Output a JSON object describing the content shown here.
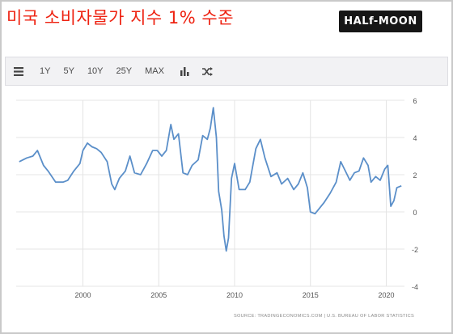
{
  "header": {
    "title": "미국 소비자물가 지수 1% 수준",
    "logo_text": "HALf-MOON"
  },
  "toolbar": {
    "menu_icon": "menu-icon",
    "buttons": [
      "1Y",
      "5Y",
      "10Y",
      "25Y",
      "MAX"
    ],
    "bar_chart_icon": "bar-chart-icon",
    "shuffle_icon": "shuffle-icon"
  },
  "colors": {
    "title": "#ee2211",
    "line": "#5b8fc9",
    "grid": "#e4e4e4",
    "toolbar_bg": "#f2f2f4"
  },
  "chart_data": {
    "type": "line",
    "title": "",
    "xlabel": "",
    "ylabel": "",
    "source": "SOURCE: TRADINGECONOMICS.COM | U.S. BUREAU OF LABOR STATISTICS",
    "x_ticks": [
      "2000",
      "2005",
      "2010",
      "2015",
      "2020"
    ],
    "x_tick_values": [
      2000,
      2005,
      2010,
      2015,
      2020
    ],
    "y_ticks": [
      "6",
      "4",
      "2",
      "0",
      "-2",
      "-4"
    ],
    "y_tick_values": [
      6,
      4,
      2,
      0,
      -2,
      -4
    ],
    "xlim": [
      1995.6,
      2021.2
    ],
    "ylim": [
      -4,
      6
    ],
    "grid": true,
    "y_axis_position": "right",
    "series": [
      {
        "x": [
          1995.8,
          1996.3,
          1996.7,
          1997.0,
          1997.4,
          1997.7,
          1998.2,
          1998.7,
          1999.0,
          1999.4,
          1999.8,
          2000.0,
          2000.3,
          2000.6,
          2000.9,
          2001.2,
          2001.6,
          2001.9,
          2002.1,
          2002.4,
          2002.8,
          2003.1,
          2003.4,
          2003.8,
          2004.2,
          2004.6,
          2004.9,
          2005.2,
          2005.5,
          2005.8,
          2006.0,
          2006.3,
          2006.6,
          2006.9,
          2007.2,
          2007.6,
          2007.9,
          2008.2,
          2008.4,
          2008.6,
          2008.8,
          2008.95,
          2009.15,
          2009.3,
          2009.45,
          2009.6,
          2009.8,
          2010.0,
          2010.3,
          2010.7,
          2011.0,
          2011.4,
          2011.7,
          2012.0,
          2012.4,
          2012.8,
          2013.1,
          2013.5,
          2013.9,
          2014.2,
          2014.5,
          2014.8,
          2015.0,
          2015.3,
          2015.6,
          2015.9,
          2016.3,
          2016.7,
          2017.0,
          2017.3,
          2017.6,
          2017.9,
          2018.2,
          2018.5,
          2018.8,
          2019.0,
          2019.3,
          2019.6,
          2019.9,
          2020.1,
          2020.3,
          2020.5,
          2020.7,
          2021.0
        ],
        "y": [
          2.7,
          2.9,
          3.0,
          3.3,
          2.5,
          2.2,
          1.6,
          1.6,
          1.7,
          2.2,
          2.6,
          3.3,
          3.7,
          3.5,
          3.4,
          3.2,
          2.7,
          1.5,
          1.2,
          1.8,
          2.2,
          3.0,
          2.1,
          2.0,
          2.6,
          3.3,
          3.3,
          3.0,
          3.3,
          4.7,
          3.9,
          4.2,
          2.1,
          2.0,
          2.5,
          2.8,
          4.1,
          3.9,
          4.5,
          5.6,
          4.0,
          1.1,
          0.1,
          -1.3,
          -2.1,
          -1.4,
          1.8,
          2.6,
          1.2,
          1.2,
          1.6,
          3.4,
          3.9,
          2.9,
          1.9,
          2.1,
          1.5,
          1.8,
          1.2,
          1.5,
          2.1,
          1.3,
          0.0,
          -0.1,
          0.2,
          0.5,
          1.0,
          1.6,
          2.7,
          2.2,
          1.7,
          2.1,
          2.2,
          2.9,
          2.5,
          1.6,
          1.9,
          1.7,
          2.3,
          2.5,
          0.3,
          0.6,
          1.3,
          1.4
        ]
      }
    ]
  }
}
